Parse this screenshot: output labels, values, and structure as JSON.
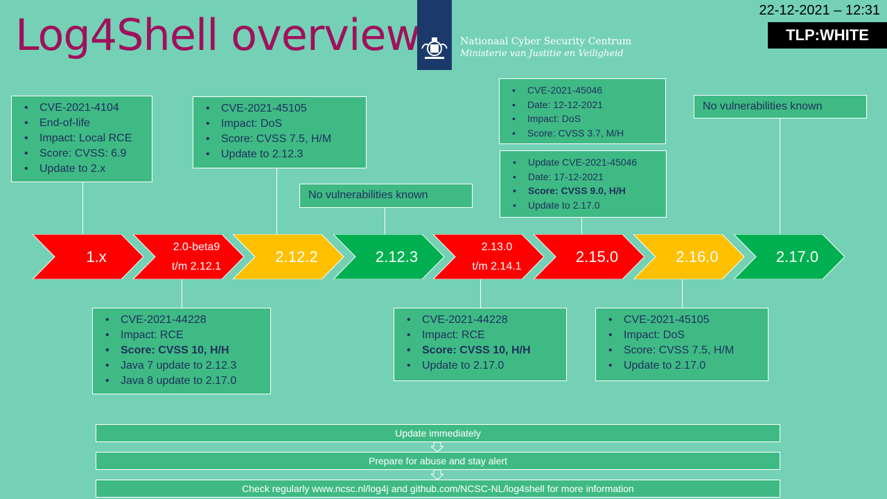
{
  "header": {
    "title": "Log4Shell overview",
    "datetime": "22-12-2021 – 12:31",
    "tlp": "TLP:WHITE",
    "org_name": "Nationaal Cyber Security Centrum",
    "org_ministry": "Ministerie van Justitie en Veiligheid"
  },
  "colors": {
    "background": "#74d1b5",
    "red": "#ff0000",
    "yellow": "#ffc000",
    "green": "#00b050",
    "box": "#3fba85",
    "title": "#a0105c"
  },
  "versions": [
    {
      "label": "1.x",
      "color": "red"
    },
    {
      "label": "2.0-beta9",
      "label2": "t/m 2.12.1",
      "color": "red"
    },
    {
      "label": "2.12.2",
      "color": "yellow"
    },
    {
      "label": "2.12.3",
      "color": "green"
    },
    {
      "label": "2.13.0",
      "label2": "t/m 2.14.1",
      "color": "red"
    },
    {
      "label": "2.15.0",
      "color": "red"
    },
    {
      "label": "2.16.0",
      "color": "yellow"
    },
    {
      "label": "2.17.0",
      "color": "green"
    }
  ],
  "boxes": {
    "v1x": [
      "CVE-2021-4104",
      "End-of-life",
      "Impact: Local RCE",
      "Score: CVSS: 6.9",
      "Update to 2.x"
    ],
    "v2122": [
      "CVE-2021-45105",
      "Impact: DoS",
      "Score: CVSS 7.5, H/M",
      "Update to 2.12.3"
    ],
    "v2123": "No vulnerabilities known",
    "v2150a": [
      "CVE-2021-45046",
      "Date: 12-12-2021",
      "Impact:  DoS",
      "Score: CVSS 3.7, M/H"
    ],
    "v2150b": [
      "Update CVE-2021-45046",
      "Date: 17-12-2021",
      "Score: CVSS 9.0, H/H",
      "Update to 2.17.0"
    ],
    "v2170": "No vulnerabilities known",
    "v20beta": [
      "CVE-2021-44228",
      "Impact: RCE",
      "Score: CVSS 10, H/H",
      "Java 7 update to 2.12.3",
      "Java 8 update to 2.17.0"
    ],
    "v2130": [
      "CVE-2021-44228",
      "Impact: RCE",
      "Score: CVSS 10, H/H",
      "Update to 2.17.0"
    ],
    "v2160": [
      "CVE-2021-45105",
      "Impact: DoS",
      "Score: CVSS 7.5, H/M",
      "Update to 2.17.0"
    ]
  },
  "actions": [
    "Update immediately",
    "Prepare for abuse and stay alert",
    "Check regularly www.ncsc.nl/log4j and github.com/NCSC-NL/log4shell for more information"
  ]
}
